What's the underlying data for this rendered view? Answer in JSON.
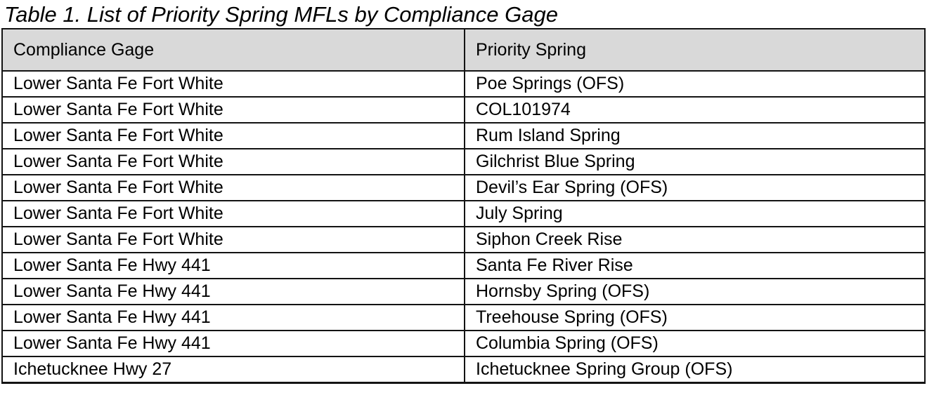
{
  "title": "Table 1. List of Priority Spring MFLs by Compliance Gage",
  "table": {
    "columns": [
      "Compliance Gage",
      "Priority Spring"
    ],
    "rows": [
      {
        "gage": "Lower Santa Fe Fort White",
        "spring": "Poe Springs (OFS)"
      },
      {
        "gage": "Lower Santa Fe Fort White",
        "spring": "COL101974"
      },
      {
        "gage": "Lower Santa Fe Fort White",
        "spring": "Rum Island Spring"
      },
      {
        "gage": "Lower Santa Fe Fort White",
        "spring": "Gilchrist Blue Spring"
      },
      {
        "gage": "Lower Santa Fe Fort White",
        "spring": "Devil’s Ear Spring (OFS)"
      },
      {
        "gage": "Lower Santa Fe Fort White",
        "spring": "July Spring"
      },
      {
        "gage": "Lower Santa Fe Fort White",
        "spring": "Siphon Creek Rise"
      },
      {
        "gage": "Lower Santa Fe Hwy 441",
        "spring": "Santa Fe River Rise"
      },
      {
        "gage": "Lower Santa Fe Hwy 441",
        "spring": "Hornsby Spring (OFS)"
      },
      {
        "gage": "Lower Santa Fe Hwy 441",
        "spring": "Treehouse Spring (OFS)"
      },
      {
        "gage": "Lower Santa Fe Hwy 441",
        "spring": "Columbia Spring (OFS)"
      },
      {
        "gage": "Ichetucknee Hwy 27",
        "spring": "Ichetucknee Spring Group (OFS)"
      }
    ]
  },
  "colors": {
    "header_bg": "#d9d9d9",
    "border": "#131313",
    "text": "#000000"
  }
}
